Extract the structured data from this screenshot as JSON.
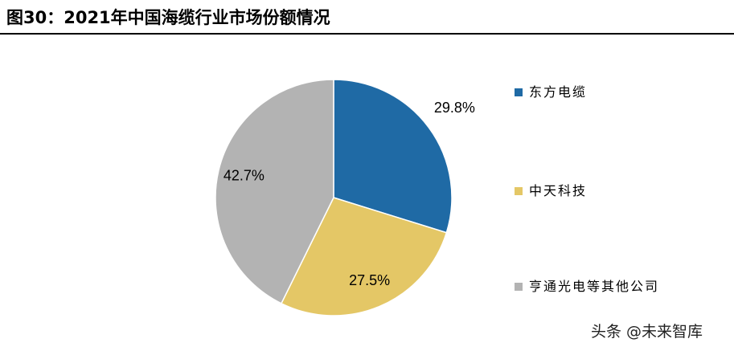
{
  "chart_data": {
    "type": "pie",
    "title": "图30：2021年中国海缆行业市场份额情况",
    "categories": [
      "东方电缆",
      "中天科技",
      "亨通光电等其他公司"
    ],
    "values": [
      29.8,
      27.5,
      42.7
    ],
    "value_labels": [
      "29.8%",
      "27.5%",
      "42.7%"
    ],
    "colors": [
      "#1f6aa5",
      "#e4c766",
      "#b3b3b3"
    ],
    "legend": "right"
  },
  "watermark": "头条 @未来智库"
}
